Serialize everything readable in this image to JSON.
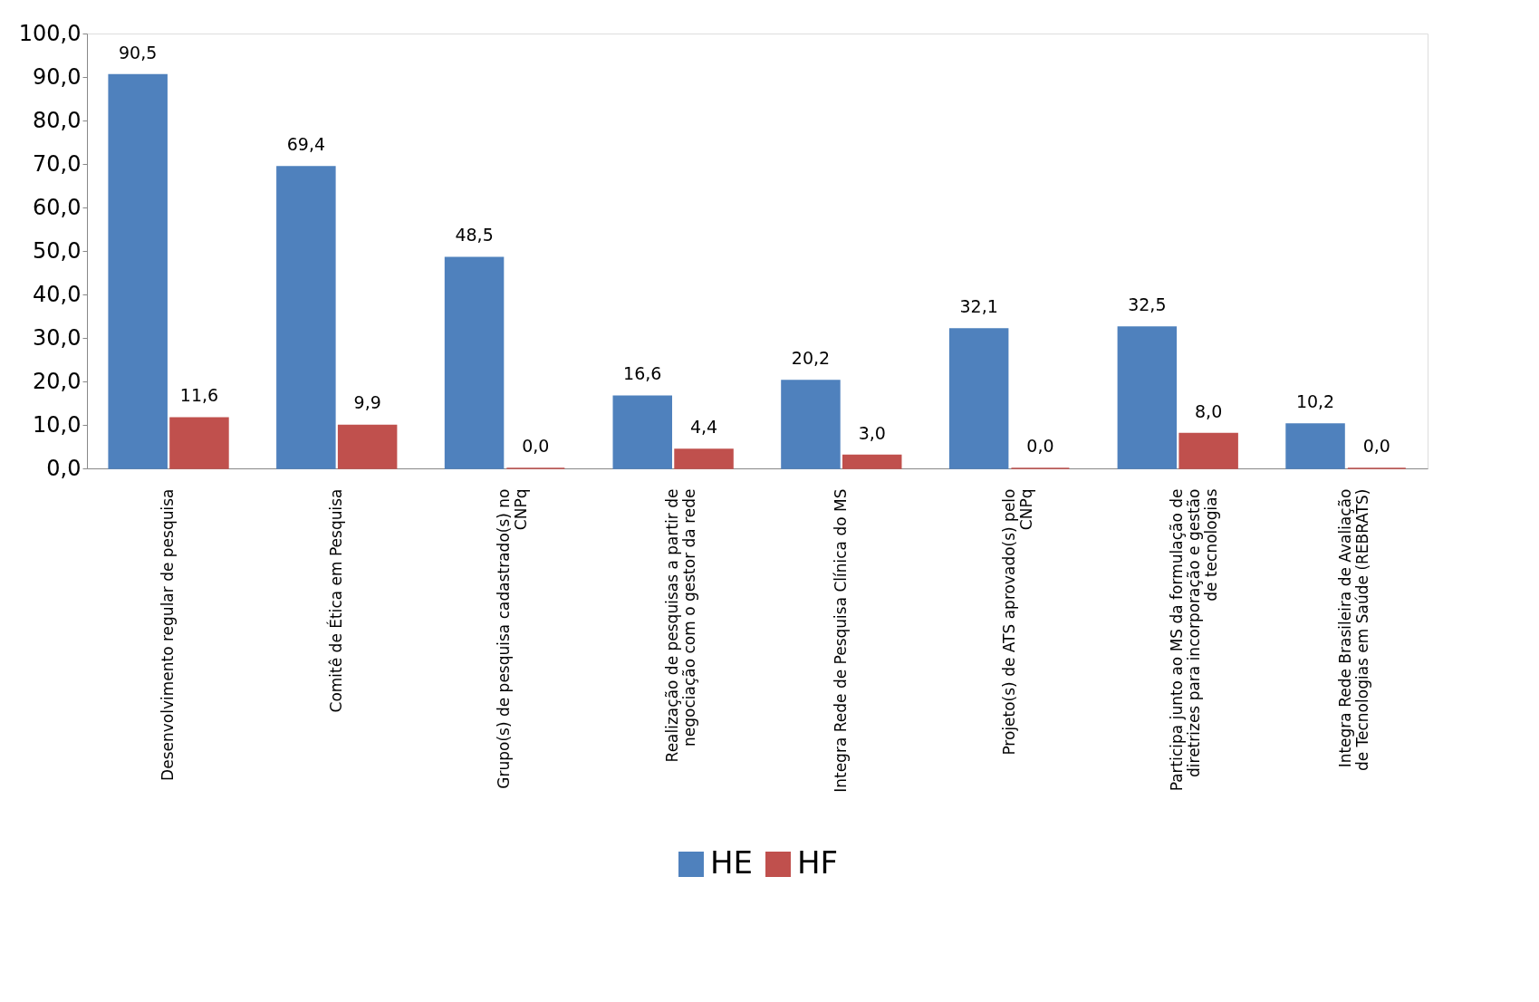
{
  "chart_data": {
    "type": "bar",
    "categories": [
      "Desenvolvimento regular de pesquisa",
      "Comitê de Ética em Pesquisa",
      "Grupo(s) de pesquisa cadastrado(s) no CNPq",
      "Realização de pesquisas a partir de negociação com o gestor da rede",
      "Integra Rede de Pesquisa Clínica do MS",
      "Projeto(s) de ATS aprovado(s) pelo CNPq",
      "Participa junto ao MS da formulação de diretrizes para incorporação e gestão de tecnologias",
      "Integra Rede Brasileira de Avaliação de Tecnologias em Saúde (REBRATS)"
    ],
    "series": [
      {
        "name": "HE",
        "color": "#4f81bd",
        "values": [
          90.5,
          69.4,
          48.5,
          16.6,
          20.2,
          32.1,
          32.5,
          10.2
        ],
        "value_labels": [
          "90,5",
          "69,4",
          "48,5",
          "16,6",
          "20,2",
          "32,1",
          "32,5",
          "10,2"
        ]
      },
      {
        "name": "HF",
        "color": "#c0504d",
        "values": [
          11.6,
          9.9,
          0.0,
          4.4,
          3.0,
          0.0,
          8.0,
          0.0
        ],
        "value_labels": [
          "11,6",
          "9,9",
          "0,0",
          "4,4",
          "3,0",
          "0,0",
          "8,0",
          "0,0"
        ]
      }
    ],
    "ylim": [
      0,
      100
    ],
    "yticks": [
      {
        "value": 0,
        "label": "0,0"
      },
      {
        "value": 10,
        "label": "10,0"
      },
      {
        "value": 20,
        "label": "20,0"
      },
      {
        "value": 30,
        "label": "30,0"
      },
      {
        "value": 40,
        "label": "40,0"
      },
      {
        "value": 50,
        "label": "50,0"
      },
      {
        "value": 60,
        "label": "60,0"
      },
      {
        "value": 70,
        "label": "70,0"
      },
      {
        "value": 80,
        "label": "80,0"
      },
      {
        "value": 90,
        "label": "90,0"
      },
      {
        "value": 100,
        "label": "100,0"
      }
    ],
    "grid": false,
    "legend": "bottom"
  }
}
